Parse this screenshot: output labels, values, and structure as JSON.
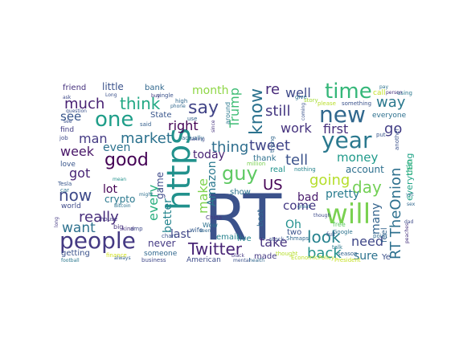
{
  "words": [
    {
      "text": "RT",
      "color": "#3b528b"
    },
    {
      "text": "https",
      "color": "#21918c"
    },
    {
      "text": "people",
      "color": "#443983"
    },
    {
      "text": "will",
      "color": "#7ad151"
    },
    {
      "text": "year",
      "color": "#2a788e"
    },
    {
      "text": "new",
      "color": "#31688e"
    },
    {
      "text": "time",
      "color": "#35b779"
    },
    {
      "text": "one",
      "color": "#1f9e89"
    },
    {
      "text": "good",
      "color": "#440154"
    },
    {
      "text": "guy",
      "color": "#5ec962"
    },
    {
      "text": "say",
      "color": "#414487"
    },
    {
      "text": "think",
      "color": "#22a884"
    },
    {
      "text": "know",
      "color": "#2c728e"
    },
    {
      "text": "now",
      "color": "#3e4a89"
    },
    {
      "text": "Twitter",
      "color": "#482475"
    },
    {
      "text": "RT TheOnion",
      "color": "#2d708e"
    },
    {
      "text": "really",
      "color": "#472d7b"
    },
    {
      "text": "Trump",
      "color": "#3dbc74"
    },
    {
      "text": "much",
      "color": "#482173"
    },
    {
      "text": "tweet",
      "color": "#404588"
    },
    {
      "text": "look",
      "color": "#26828e"
    },
    {
      "text": "back",
      "color": "#21918c"
    },
    {
      "text": "still",
      "color": "#453781"
    },
    {
      "text": "thing",
      "color": "#2e6e8e"
    },
    {
      "text": "market",
      "color": "#2c728e"
    },
    {
      "text": "going",
      "color": "#b5de2b"
    },
    {
      "text": "day",
      "color": "#73d056"
    },
    {
      "text": "US",
      "color": "#440154"
    },
    {
      "text": "tell",
      "color": "#3b528b"
    },
    {
      "text": "work",
      "color": "#46337e"
    },
    {
      "text": "first",
      "color": "#472f7d"
    },
    {
      "text": "way",
      "color": "#2a788e"
    },
    {
      "text": "go",
      "color": "#433e85"
    },
    {
      "text": "well",
      "color": "#3e4a89"
    },
    {
      "text": "re",
      "color": "#472a7a"
    },
    {
      "text": "right",
      "color": "#440154"
    },
    {
      "text": "man",
      "color": "#443a83"
    },
    {
      "text": "want",
      "color": "#2d718e"
    },
    {
      "text": "week",
      "color": "#481668"
    },
    {
      "text": "got",
      "color": "#482576"
    },
    {
      "text": "even",
      "color": "#2c728e"
    },
    {
      "text": "every",
      "color": "#29af7f"
    },
    {
      "text": "better",
      "color": "#25848e"
    },
    {
      "text": "make",
      "color": "#7fd34e"
    },
    {
      "text": "today",
      "color": "#482374"
    },
    {
      "text": "Amazon",
      "color": "#2a788e"
    },
    {
      "text": "money",
      "color": "#1f9a8a"
    },
    {
      "text": "month",
      "color": "#8ed645"
    },
    {
      "text": "see",
      "color": "#39568c"
    },
    {
      "text": "lot",
      "color": "#440154"
    },
    {
      "text": "last",
      "color": "#404688"
    },
    {
      "text": "need",
      "color": "#3f4788"
    },
    {
      "text": "take",
      "color": "#46327e"
    },
    {
      "text": "come",
      "color": "#443983"
    },
    {
      "text": "bad",
      "color": "#481a6c"
    },
    {
      "text": "pretty",
      "color": "#287c8e"
    },
    {
      "text": "Oh",
      "color": "#218f8d"
    },
    {
      "text": "many",
      "color": "#33638d"
    },
    {
      "text": "sure",
      "color": "#2c728e"
    },
    {
      "text": "never",
      "color": "#443983"
    },
    {
      "text": "game",
      "color": "#3e4989"
    },
    {
      "text": "crypto",
      "color": "#2a788e"
    },
    {
      "text": "account",
      "color": "#2e6f8e"
    },
    {
      "text": "everything",
      "color": "#20a386"
    },
    {
      "text": "little",
      "color": "#3b528b"
    },
    {
      "text": "friend",
      "color": "#46327e"
    },
    {
      "text": "bank",
      "color": "#31688e"
    },
    {
      "text": "State",
      "color": "#39568c"
    },
    {
      "text": "thank",
      "color": "#2d708e"
    },
    {
      "text": "email",
      "color": "#26828e"
    },
    {
      "text": "real",
      "color": "#20938c"
    },
    {
      "text": "show",
      "color": "#2c738e"
    },
    {
      "text": "best",
      "color": "#31688e"
    },
    {
      "text": "live",
      "color": "#24868e"
    },
    {
      "text": "two",
      "color": "#3a538b"
    },
    {
      "text": "made",
      "color": "#443983"
    },
    {
      "text": "someone",
      "color": "#31688e"
    },
    {
      "text": "getting",
      "color": "#3b528b"
    },
    {
      "text": "American",
      "color": "#3e4c8a"
    },
    {
      "text": "feel",
      "color": "#33638d"
    },
    {
      "text": "Ye",
      "color": "#3c508b"
    },
    {
      "text": "call",
      "color": "#c2df23"
    },
    {
      "text": "using",
      "color": "#2a788e"
    },
    {
      "text": "thought",
      "color": "#b5de2b"
    },
    {
      "text": "EconomicPolicy",
      "color": "#bddf26"
    },
    {
      "text": "President",
      "color": "#c5e021"
    },
    {
      "text": "finance",
      "color": "#d2e21b"
    },
    {
      "text": "love",
      "color": "#39568c"
    },
    {
      "text": "find",
      "color": "#433e85"
    },
    {
      "text": "world",
      "color": "#3e4a89"
    },
    {
      "text": "said",
      "color": "#35608d"
    },
    {
      "text": "around",
      "color": "#2a788e"
    },
    {
      "text": "nothing",
      "color": "#25848e"
    },
    {
      "text": "Google",
      "color": "#2c728e"
    },
    {
      "text": "another",
      "color": "#3b528b"
    },
    {
      "text": "big",
      "color": "#46327e"
    },
    {
      "text": "wife",
      "color": "#365c8d"
    },
    {
      "text": "China",
      "color": "#453581"
    },
    {
      "text": "business",
      "color": "#3f4889"
    },
    {
      "text": "CEO",
      "color": "#35b779"
    },
    {
      "text": "please",
      "color": "#b8de29"
    },
    {
      "text": "something",
      "color": "#3b528b"
    },
    {
      "text": "everyone",
      "color": "#2d708e"
    },
    {
      "text": "point",
      "color": "#31688e"
    },
    {
      "text": "free",
      "color": "#5ec962"
    },
    {
      "text": "put",
      "color": "#39568c"
    },
    {
      "text": "use",
      "color": "#33638d"
    },
    {
      "text": "story",
      "color": "#a5db36"
    },
    {
      "text": "give",
      "color": "#2d708e"
    },
    {
      "text": "job",
      "color": "#3e4a89"
    },
    {
      "text": "house",
      "color": "#443983"
    },
    {
      "text": "stock",
      "color": "#3b528b"
    },
    {
      "text": "Wow",
      "color": "#2c728e"
    },
    {
      "text": "kind",
      "color": "#46327e"
    },
    {
      "text": "amp",
      "color": "#3e4989"
    },
    {
      "text": "single",
      "color": "#3b528b"
    },
    {
      "text": "phone",
      "color": "#31688e"
    },
    {
      "text": "Tesla",
      "color": "#39568c"
    },
    {
      "text": "actually",
      "color": "#2d708e"
    },
    {
      "text": "Long",
      "color": "#3b528b"
    },
    {
      "text": "high",
      "color": "#31688e"
    },
    {
      "text": "ask",
      "color": "#3e4a89"
    },
    {
      "text": "buy",
      "color": "#453781"
    },
    {
      "text": "car",
      "color": "#2c728e"
    },
    {
      "text": "mean",
      "color": "#21918c"
    },
    {
      "text": "talk",
      "color": "#2a788e"
    },
    {
      "text": "season",
      "color": "#33638d"
    },
    {
      "text": "chart",
      "color": "#3b528b"
    },
    {
      "text": "taking",
      "color": "#3e4a89"
    },
    {
      "text": "since",
      "color": "#46327e"
    },
    {
      "text": "seen",
      "color": "#31688e"
    },
    {
      "text": "might",
      "color": "#2d708e"
    },
    {
      "text": "question",
      "color": "#3b528b"
    },
    {
      "text": "Bitcoin",
      "color": "#2c728e"
    },
    {
      "text": "long",
      "color": "#443983"
    },
    {
      "text": "football",
      "color": "#2a788e"
    },
    {
      "text": "always",
      "color": "#35608d"
    },
    {
      "text": "trying",
      "color": "#31688e"
    },
    {
      "text": "coming",
      "color": "#3b528b"
    },
    {
      "text": "million",
      "color": "#7ad151"
    },
    {
      "text": "though",
      "color": "#3e4a89"
    },
    {
      "text": "great",
      "color": "#2d708e"
    },
    {
      "text": "5hmaps",
      "color": "#31688e"
    },
    {
      "text": "full",
      "color": "#3b528b"
    },
    {
      "text": "person",
      "color": "#46327e"
    },
    {
      "text": "pay",
      "color": "#2c728e"
    },
    {
      "text": "black",
      "color": "#443983"
    },
    {
      "text": "mental",
      "color": "#3b528b"
    },
    {
      "text": "health",
      "color": "#31688e"
    },
    {
      "text": "peaches",
      "color": "#46327e"
    },
    {
      "text": "dad",
      "color": "#3e4a89"
    },
    {
      "text": "yet",
      "color": "#2d708e"
    },
    {
      "text": "sex",
      "color": "#31688e"
    },
    {
      "text": "see",
      "color": "#3b528b"
    }
  ]
}
